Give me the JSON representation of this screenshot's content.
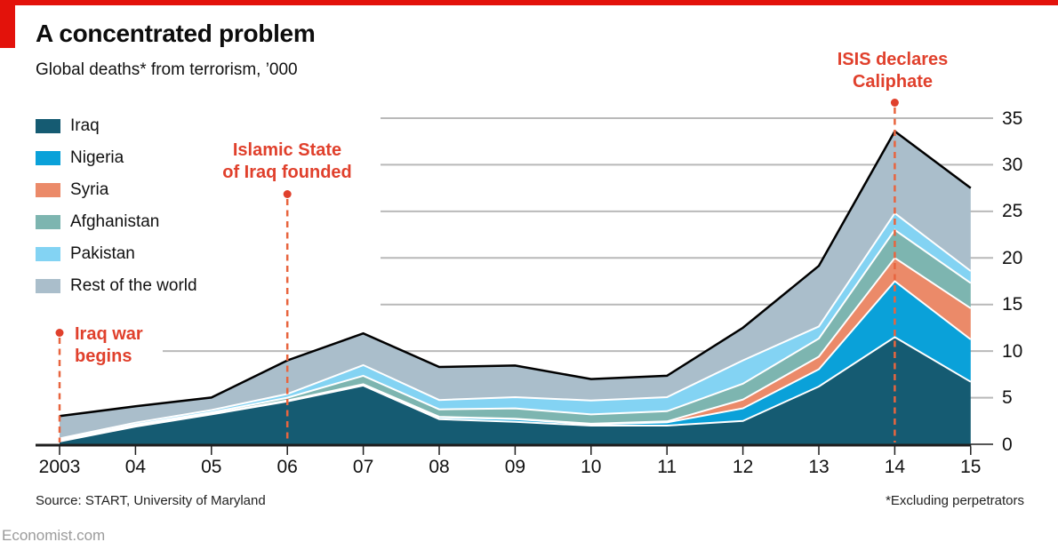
{
  "brand": {
    "accent_red": "#e3120b",
    "annotation_color": "#e0402c",
    "dash_color": "#e8653f",
    "gridline_color": "#b9b9b9",
    "axis_color": "#1f1f1f"
  },
  "header": {
    "title": "A concentrated problem",
    "subtitle": "Global deaths* from terrorism, ’000"
  },
  "legend": [
    {
      "label": "Iraq",
      "color": "#155b72"
    },
    {
      "label": "Nigeria",
      "color": "#0aa1d9"
    },
    {
      "label": "Syria",
      "color": "#eb8a69"
    },
    {
      "label": "Afghanistan",
      "color": "#7db5b0"
    },
    {
      "label": "Pakistan",
      "color": "#83d3f3"
    },
    {
      "label": "Rest of the world",
      "color": "#aabecb"
    }
  ],
  "chart_data": {
    "type": "area",
    "stacked": true,
    "title": "A concentrated problem",
    "subtitle": "Global deaths* from terrorism, '000",
    "x": [
      2003,
      2004,
      2005,
      2006,
      2007,
      2008,
      2009,
      2010,
      2011,
      2012,
      2013,
      2014,
      2015
    ],
    "x_tick_labels": [
      "2003",
      "04",
      "05",
      "06",
      "07",
      "08",
      "09",
      "10",
      "11",
      "12",
      "13",
      "14",
      "15"
    ],
    "ylim": [
      0,
      35
    ],
    "yticks": [
      {
        "label": "0",
        "value": 0
      },
      {
        "label": "5",
        "value": 5
      },
      {
        "label": "10",
        "value": 10
      },
      {
        "label": "15",
        "value": 15
      },
      {
        "label": "20",
        "value": 20
      },
      {
        "label": "25",
        "value": 25
      },
      {
        "label": "30",
        "value": 30
      },
      {
        "label": "35",
        "value": 35
      }
    ],
    "grid": true,
    "legend_position": "top-left",
    "series": [
      {
        "name": "Iraq",
        "color": "#155b72",
        "values": [
          0.3,
          1.9,
          3.2,
          4.6,
          6.3,
          2.7,
          2.4,
          2.0,
          2.0,
          2.5,
          6.2,
          11.5,
          6.7
        ]
      },
      {
        "name": "Nigeria",
        "color": "#0aa1d9",
        "values": [
          0.05,
          0.05,
          0.05,
          0.05,
          0.1,
          0.2,
          0.3,
          0.15,
          0.35,
          1.35,
          1.85,
          6.0,
          4.55
        ]
      },
      {
        "name": "Syria",
        "color": "#eb8a69",
        "values": [
          0.02,
          0.02,
          0.02,
          0.05,
          0.05,
          0.05,
          0.05,
          0.05,
          0.1,
          0.95,
          1.35,
          2.5,
          3.35
        ]
      },
      {
        "name": "Afghanistan",
        "color": "#7db5b0",
        "values": [
          0.1,
          0.15,
          0.15,
          0.3,
          0.9,
          0.8,
          1.1,
          1.0,
          1.1,
          1.7,
          1.95,
          3.0,
          2.7
        ]
      },
      {
        "name": "Pakistan",
        "color": "#83d3f3",
        "values": [
          0.15,
          0.2,
          0.25,
          0.4,
          1.15,
          1.0,
          1.2,
          1.5,
          1.5,
          2.5,
          1.3,
          1.8,
          1.3
        ]
      },
      {
        "name": "Rest of the world",
        "color": "#aabecb",
        "values": [
          2.4,
          1.75,
          1.35,
          3.6,
          3.4,
          3.55,
          3.4,
          2.3,
          2.3,
          3.5,
          6.5,
          8.8,
          8.9
        ]
      }
    ],
    "totals": [
      3.0,
      4.1,
      5.0,
      9.0,
      11.9,
      8.3,
      8.5,
      7.0,
      7.4,
      12.5,
      19.2,
      33.6,
      27.5
    ],
    "annotations": [
      {
        "year": 2003,
        "lines": [
          "Iraq war",
          "begins"
        ]
      },
      {
        "year": 2006,
        "lines": [
          "Islamic State",
          "of Iraq founded"
        ]
      },
      {
        "year": 2014,
        "lines": [
          "ISIS declares",
          "Caliphate"
        ]
      }
    ]
  },
  "footer": {
    "source": "Source: START, University of Maryland",
    "note": "*Excluding perpetrators",
    "site": "Economist.com"
  }
}
